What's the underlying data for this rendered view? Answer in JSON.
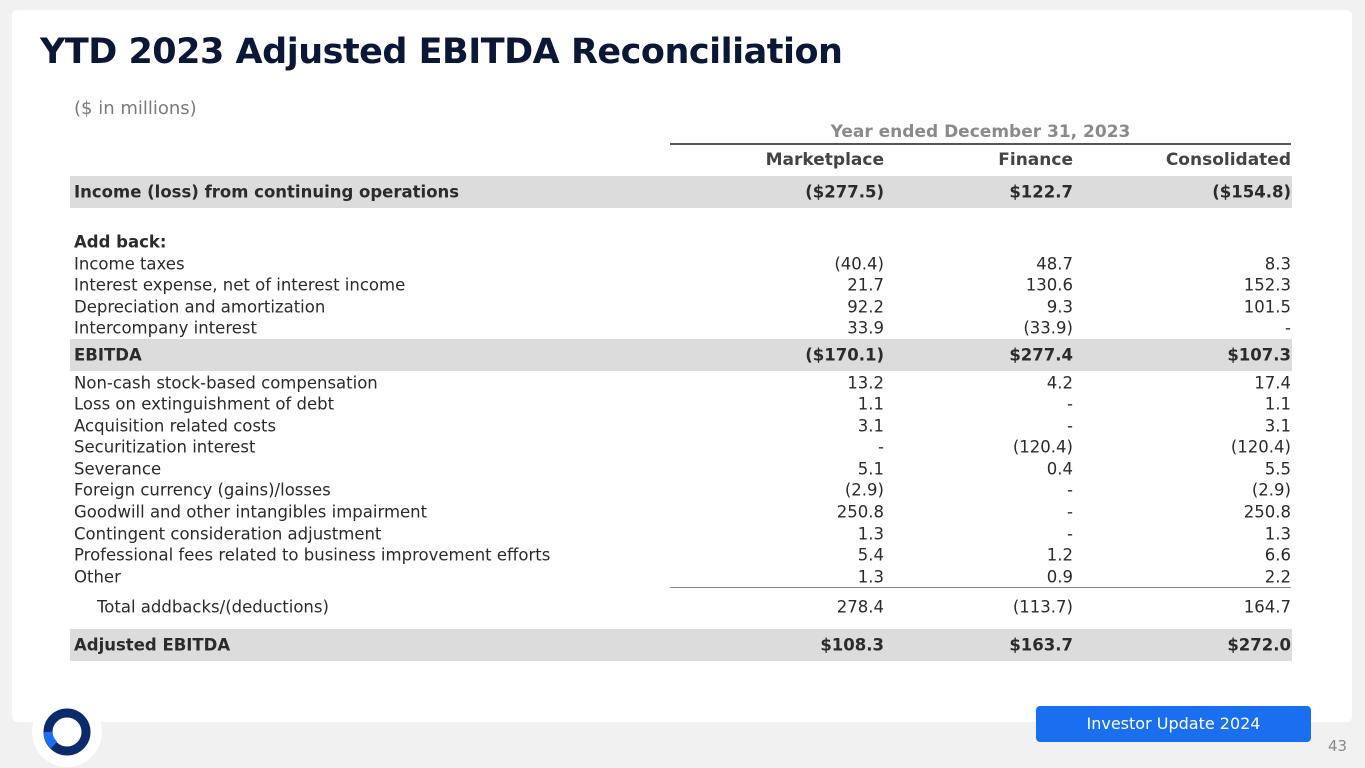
{
  "header": {
    "title": "YTD 2023 Adjusted EBITDA Reconciliation",
    "subtitle": "($ in millions)"
  },
  "table": {
    "group_header": "Year ended December 31, 2023",
    "columns": [
      "Marketplace",
      "Finance",
      "Consolidated"
    ],
    "rows": [
      {
        "label": "Income (loss) from continuing operations",
        "cells": [
          "($277.5)",
          "$122.7",
          "($154.8)"
        ]
      },
      {
        "label": "Add back:"
      },
      {
        "label": "Income taxes",
        "cells": [
          "(40.4)",
          "48.7",
          "8.3"
        ]
      },
      {
        "label": "Interest expense, net of interest income",
        "cells": [
          "21.7",
          "130.6",
          "152.3"
        ]
      },
      {
        "label": "Depreciation and amortization",
        "cells": [
          "92.2",
          "9.3",
          "101.5"
        ]
      },
      {
        "label": "Intercompany interest",
        "cells": [
          "33.9",
          "(33.9)",
          "-"
        ]
      },
      {
        "label": "EBITDA",
        "cells": [
          "($170.1)",
          "$277.4",
          "$107.3"
        ]
      },
      {
        "label": "Non-cash stock-based compensation",
        "cells": [
          "13.2",
          "4.2",
          "17.4"
        ]
      },
      {
        "label": "Loss on extinguishment of debt",
        "cells": [
          "1.1",
          "-",
          "1.1"
        ]
      },
      {
        "label": "Acquisition related costs",
        "cells": [
          "3.1",
          "-",
          "3.1"
        ]
      },
      {
        "label": "Securitization interest",
        "cells": [
          "-",
          "(120.4)",
          "(120.4)"
        ]
      },
      {
        "label": "Severance",
        "cells": [
          "5.1",
          "0.4",
          "5.5"
        ]
      },
      {
        "label": "Foreign currency (gains)/losses",
        "cells": [
          "(2.9)",
          "-",
          "(2.9)"
        ]
      },
      {
        "label": "Goodwill and other intangibles impairment",
        "cells": [
          "250.8",
          "-",
          "250.8"
        ]
      },
      {
        "label": "Contingent consideration adjustment",
        "cells": [
          "1.3",
          "-",
          "1.3"
        ]
      },
      {
        "label": "Professional fees related to business improvement efforts",
        "cells": [
          "5.4",
          "1.2",
          "6.6"
        ]
      },
      {
        "label": "Other",
        "cells": [
          "1.3",
          "0.9",
          "2.2"
        ]
      },
      {
        "label": "Total addbacks/(deductions)",
        "cells": [
          "278.4",
          "(113.7)",
          "164.7"
        ]
      },
      {
        "label": "Adjusted EBITDA",
        "cells": [
          "$108.3",
          "$163.7",
          "$272.0"
        ]
      }
    ]
  },
  "footer": {
    "badge": "Investor Update 2024",
    "page_number": "43"
  }
}
